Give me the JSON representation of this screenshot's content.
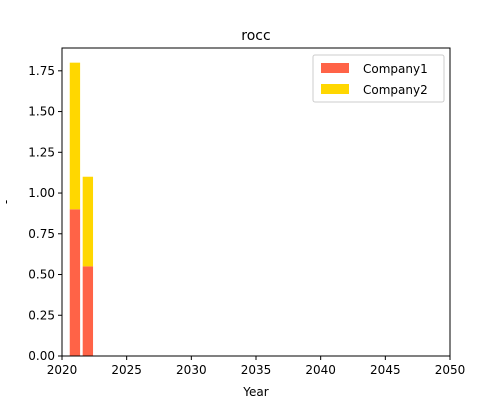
{
  "chart_data": {
    "type": "bar",
    "stacked": true,
    "title": "rocc",
    "xlabel": "Year",
    "ylabel": "-",
    "x": [
      2021,
      2022
    ],
    "series": [
      {
        "name": "Company1",
        "values": [
          0.9,
          0.55
        ],
        "color": "#ff6347"
      },
      {
        "name": "Company2",
        "values": [
          0.9,
          0.55
        ],
        "color": "#ffd700"
      }
    ],
    "xlim": [
      2020,
      2050
    ],
    "ylim": [
      0,
      1.89
    ],
    "xticks": [
      2020,
      2025,
      2030,
      2035,
      2040,
      2045,
      2050
    ],
    "yticks": [
      0.0,
      0.25,
      0.5,
      0.75,
      1.0,
      1.25,
      1.5,
      1.75
    ],
    "ytick_labels": [
      "0.00",
      "0.25",
      "0.50",
      "0.75",
      "1.00",
      "1.25",
      "1.50",
      "1.75"
    ],
    "bar_width_years": 0.8,
    "grid": false,
    "legend_position": "top-right"
  }
}
